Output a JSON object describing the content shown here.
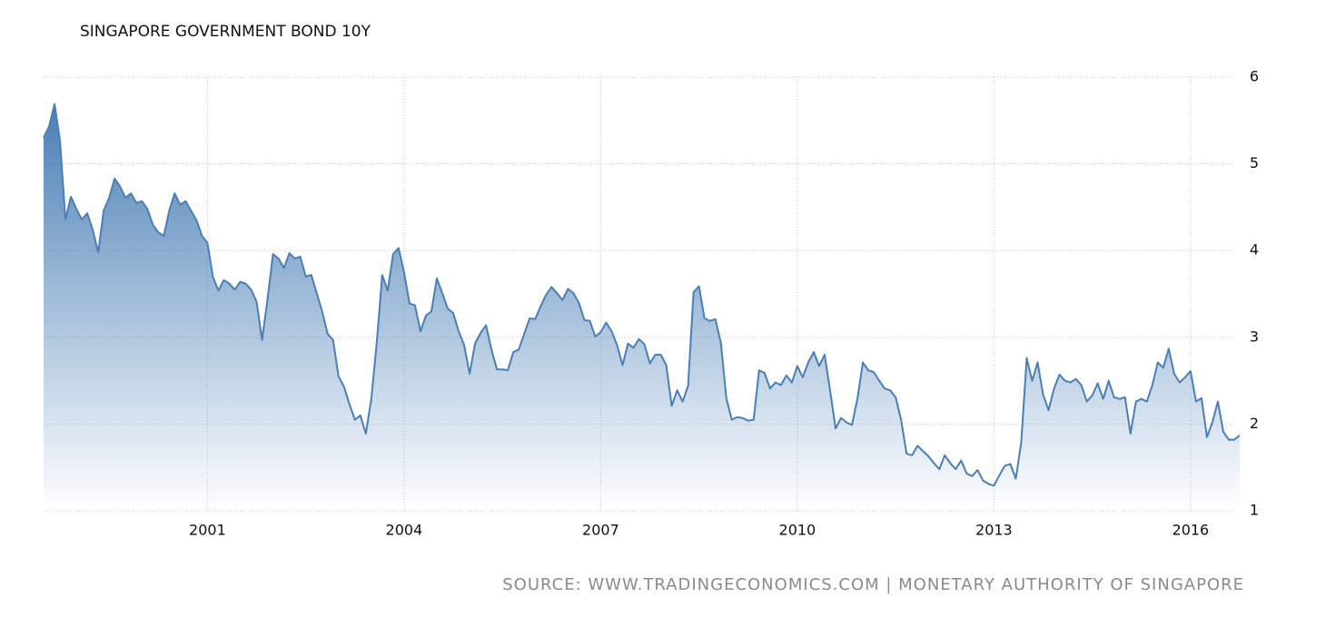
{
  "chart_data": {
    "type": "area",
    "title": "SINGAPORE GOVERNMENT BOND 10Y",
    "source": "SOURCE: WWW.TRADINGECONOMICS.COM | MONETARY AUTHORITY OF SINGAPORE",
    "color": "#4a7fb5",
    "grid": true,
    "ylim": [
      1,
      6
    ],
    "yticks": [
      1,
      2,
      3,
      4,
      5,
      6
    ],
    "categories": [
      null,
      null,
      null,
      null,
      null,
      null,
      null,
      null,
      null,
      null,
      null,
      null,
      null,
      null,
      null,
      null,
      null,
      null,
      null,
      null,
      null,
      null,
      null,
      null,
      null,
      null,
      null,
      null,
      null,
      null,
      "2001",
      null,
      null,
      null,
      null,
      null,
      null,
      null,
      null,
      null,
      null,
      null,
      null,
      null,
      null,
      null,
      null,
      null,
      null,
      null,
      null,
      null,
      null,
      null,
      null,
      null,
      null,
      null,
      null,
      null,
      null,
      null,
      null,
      null,
      null,
      null,
      "2004",
      null,
      null,
      null,
      null,
      null,
      null,
      null,
      null,
      null,
      null,
      null,
      null,
      null,
      null,
      null,
      null,
      null,
      null,
      null,
      null,
      null,
      null,
      null,
      null,
      null,
      null,
      null,
      null,
      null,
      null,
      null,
      null,
      null,
      null,
      null,
      "2007",
      null,
      null,
      null,
      null,
      null,
      null,
      null,
      null,
      null,
      null,
      null,
      null,
      null,
      null,
      null,
      null,
      null,
      null,
      null,
      null,
      null,
      null,
      null,
      null,
      null,
      null,
      null,
      null,
      null,
      null,
      null,
      null,
      null,
      null,
      null,
      "2010",
      null,
      null,
      null,
      null,
      null,
      null,
      null,
      null,
      null,
      null,
      null,
      null,
      null,
      null,
      null,
      null,
      null,
      null,
      null,
      null,
      null,
      null,
      null,
      null,
      null,
      null,
      null,
      null,
      null,
      null,
      null,
      null,
      null,
      null,
      null,
      "2013",
      null,
      null,
      null,
      null,
      null,
      null,
      null,
      null,
      null,
      null,
      null,
      null,
      null,
      null,
      null,
      null,
      null,
      null,
      null,
      null,
      null,
      null,
      null,
      null,
      null,
      null,
      null,
      null,
      null,
      null,
      null,
      null,
      null,
      null,
      null,
      "2016",
      null,
      null,
      null,
      null,
      null,
      null,
      null,
      null,
      null
    ],
    "values": [
      5.3,
      5.43,
      5.69,
      5.27,
      4.36,
      4.62,
      4.48,
      4.36,
      4.43,
      4.24,
      3.98,
      4.46,
      4.61,
      4.83,
      4.74,
      4.61,
      4.66,
      4.55,
      4.57,
      4.48,
      4.3,
      4.21,
      4.17,
      4.46,
      4.66,
      4.53,
      4.57,
      4.46,
      4.35,
      4.17,
      4.09,
      3.7,
      3.54,
      3.66,
      3.62,
      3.55,
      3.64,
      3.62,
      3.55,
      3.41,
      2.97,
      3.44,
      3.96,
      3.91,
      3.8,
      3.97,
      3.91,
      3.93,
      3.7,
      3.72,
      3.51,
      3.3,
      3.04,
      2.97,
      2.55,
      2.43,
      2.23,
      2.05,
      2.1,
      1.89,
      2.29,
      2.94,
      3.72,
      3.54,
      3.96,
      4.03,
      3.75,
      3.39,
      3.37,
      3.07,
      3.25,
      3.3,
      3.68,
      3.51,
      3.33,
      3.28,
      3.07,
      2.91,
      2.58,
      2.93,
      3.05,
      3.14,
      2.86,
      2.63,
      2.63,
      2.62,
      2.83,
      2.86,
      3.04,
      3.22,
      3.21,
      3.36,
      3.49,
      3.58,
      3.51,
      3.43,
      3.56,
      3.51,
      3.4,
      3.2,
      3.19,
      3.01,
      3.06,
      3.17,
      3.07,
      2.91,
      2.68,
      2.93,
      2.88,
      2.98,
      2.92,
      2.7,
      2.8,
      2.8,
      2.68,
      2.21,
      2.39,
      2.26,
      2.44,
      3.52,
      3.59,
      3.22,
      3.19,
      3.21,
      2.94,
      2.3,
      2.05,
      2.08,
      2.07,
      2.04,
      2.05,
      2.62,
      2.59,
      2.41,
      2.48,
      2.45,
      2.56,
      2.48,
      2.67,
      2.54,
      2.71,
      2.83,
      2.67,
      2.8,
      2.39,
      1.95,
      2.07,
      2.02,
      1.99,
      2.29,
      2.71,
      2.62,
      2.6,
      2.5,
      2.41,
      2.39,
      2.31,
      2.05,
      1.66,
      1.64,
      1.75,
      1.69,
      1.63,
      1.55,
      1.48,
      1.64,
      1.55,
      1.48,
      1.58,
      1.43,
      1.4,
      1.47,
      1.35,
      1.31,
      1.29,
      1.41,
      1.52,
      1.54,
      1.37,
      1.79,
      2.76,
      2.5,
      2.71,
      2.34,
      2.16,
      2.41,
      2.57,
      2.5,
      2.48,
      2.52,
      2.45,
      2.26,
      2.33,
      2.47,
      2.29,
      2.5,
      2.31,
      2.29,
      2.31,
      1.89,
      2.26,
      2.29,
      2.26,
      2.45,
      2.71,
      2.65,
      2.87,
      2.58,
      2.48,
      2.54,
      2.61,
      2.26,
      2.3,
      1.85,
      2.02,
      2.26,
      1.91,
      1.82,
      1.82,
      1.87
    ]
  }
}
